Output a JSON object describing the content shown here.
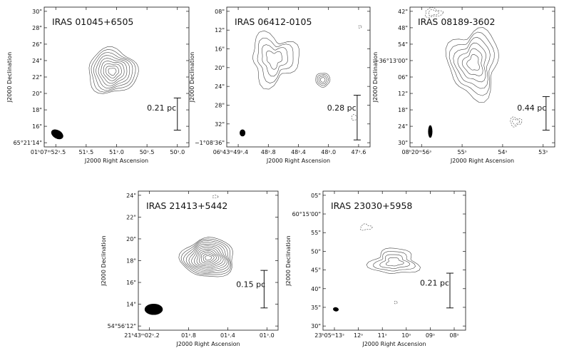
{
  "figure": {
    "panels": [
      {
        "id": "p1",
        "title": "IRAS 01045+6505",
        "xlabel": "J2000 Right Ascension",
        "ylabel": "J2000 Declination",
        "xticks": [
          "01ʰ07ᵐ52ˢ.5",
          "51ˢ.5",
          "51ˢ.0",
          "50ˢ.5",
          "50ˢ.0"
        ],
        "yticks": [
          "65°21'14\"",
          "16\"",
          "18\"",
          "20\"",
          "22\"",
          "24\"",
          "26\"",
          "28\"",
          "30\""
        ],
        "scalebar": "0.21 pc"
      },
      {
        "id": "p2",
        "title": "IRAS 06412-0105",
        "xlabel": "J2000 Right Ascension",
        "ylabel": "J2000 Declination",
        "xticks": [
          "06ʰ43ᵐ49ˢ.4",
          "48ˢ.8",
          "48ˢ.4",
          "48ˢ.0",
          "47ˢ.6"
        ],
        "yticks": [
          "−1°08'36\"",
          "32\"",
          "28\"",
          "24\"",
          "20\"",
          "16\"",
          "12\"",
          "08\""
        ],
        "scalebar": "0.28 pc"
      },
      {
        "id": "p3",
        "title": "IRAS 08189-3602",
        "xlabel": "J2000 Right Ascension",
        "ylabel": "J2000 Declination",
        "xticks": [
          "08ʰ20ᵐ56ˢ",
          "55ˢ",
          "54ˢ",
          "53ˢ"
        ],
        "yticks": [
          "30\"",
          "24\"",
          "18\"",
          "12\"",
          "06\"",
          "−36°13'00\"",
          "54\"",
          "48\"",
          "42\""
        ],
        "scalebar": "0.44 pc"
      },
      {
        "id": "p4",
        "title": "IRAS 21413+5442",
        "xlabel": "J2000 Right Ascension",
        "ylabel": "J2000 Declination",
        "xticks": [
          "21ʰ43ᵐ02ˢ.2",
          "01ˢ.8",
          "01ˢ.4",
          "01ˢ.0"
        ],
        "yticks": [
          "54°56'12\"",
          "14\"",
          "16\"",
          "18\"",
          "20\"",
          "22\"",
          "24\""
        ],
        "scalebar": "0.15 pc"
      },
      {
        "id": "p5",
        "title": "IRAS 23030+5958",
        "xlabel": "J2000 Right Ascension",
        "ylabel": "J2000 Declination",
        "xticks": [
          "23ʰ05ᵐ13ˢ",
          "12ˢ",
          "11ˢ",
          "10ˢ",
          "09ˢ",
          "08ˢ"
        ],
        "yticks": [
          "30\"",
          "35\"",
          "40\"",
          "45\"",
          "50\"",
          "55\"",
          "60°15'00\"",
          "05\""
        ],
        "scalebar": "0.21 pc"
      }
    ]
  }
}
